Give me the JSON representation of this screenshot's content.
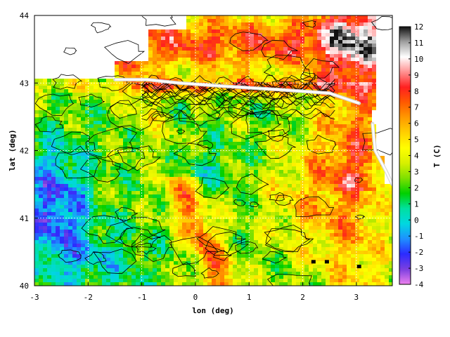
{
  "chart_data": {
    "type": "heatmap",
    "title": "",
    "xlabel": "lon (deg)",
    "ylabel": "lat (deg)",
    "xlim": [
      -3,
      3.67
    ],
    "ylim": [
      40,
      44
    ],
    "x_ticks": [
      -3,
      -2,
      -1,
      0,
      1,
      2,
      3
    ],
    "y_ticks": [
      40,
      41,
      42,
      43,
      44
    ],
    "grid": true,
    "colorbar": {
      "label": "T (C)",
      "min": -4,
      "max": 12,
      "ticks": [
        -4,
        -3,
        -2,
        -1,
        0,
        1,
        2,
        3,
        4,
        5,
        6,
        7,
        8,
        9,
        10,
        11,
        12
      ],
      "colors": [
        "#ee82ee",
        "#7b3fe0",
        "#2b2bff",
        "#1e90ff",
        "#00d8e0",
        "#00e0a0",
        "#00d000",
        "#7ee000",
        "#d8f000",
        "#ffff00",
        "#ffd000",
        "#ff9a00",
        "#ff5a00",
        "#ff2020",
        "#ff9090",
        "#ffffff",
        "#a0a0a0",
        "#101010"
      ]
    },
    "land_color": "#ffffff",
    "contour_color": "#000000"
  }
}
